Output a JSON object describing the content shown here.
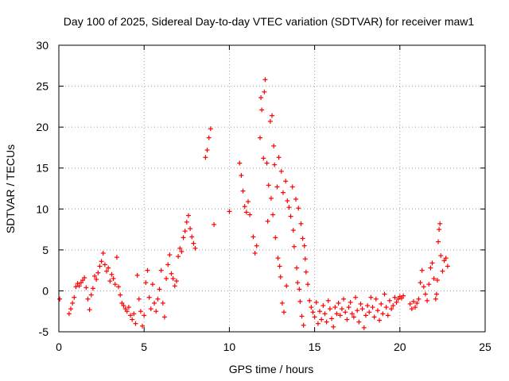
{
  "chart_data": {
    "type": "scatter",
    "title": "Day 100 of 2025, Sidereal Day-to-day VTEC variation (SDTVAR) for receiver maw1",
    "xlabel": "GPS time / hours",
    "ylabel": "SDTVAR / TECUs",
    "xlim": [
      0,
      25
    ],
    "ylim": [
      -5,
      30
    ],
    "xticks": [
      0,
      5,
      10,
      15,
      20,
      25
    ],
    "yticks": [
      -5,
      0,
      5,
      10,
      15,
      20,
      25,
      30
    ],
    "grid": true,
    "marker": "+",
    "color": "#ff0000",
    "series": [
      {
        "name": "SDTVAR",
        "points": [
          [
            0.05,
            -1.0
          ],
          [
            0.6,
            -2.8
          ],
          [
            0.7,
            -2.2
          ],
          [
            0.8,
            -1.5
          ],
          [
            0.9,
            -0.8
          ],
          [
            1.0,
            0.5
          ],
          [
            1.1,
            0.9
          ],
          [
            1.2,
            0.6
          ],
          [
            1.3,
            1.0
          ],
          [
            1.4,
            1.3
          ],
          [
            1.5,
            1.6
          ],
          [
            1.6,
            0.4
          ],
          [
            1.7,
            -1.0
          ],
          [
            1.8,
            -2.3
          ],
          [
            1.9,
            -0.5
          ],
          [
            2.0,
            0.3
          ],
          [
            2.1,
            1.8
          ],
          [
            2.2,
            1.4
          ],
          [
            2.3,
            2.2
          ],
          [
            2.4,
            3.0
          ],
          [
            2.5,
            3.6
          ],
          [
            2.6,
            4.6
          ],
          [
            2.7,
            3.2
          ],
          [
            2.8,
            2.4
          ],
          [
            2.9,
            2.8
          ],
          [
            3.0,
            1.2
          ],
          [
            3.1,
            2.0
          ],
          [
            3.2,
            1.5
          ],
          [
            3.3,
            0.8
          ],
          [
            3.4,
            4.1
          ],
          [
            3.5,
            0.5
          ],
          [
            3.6,
            -0.5
          ],
          [
            3.7,
            -1.5
          ],
          [
            3.8,
            -1.8
          ],
          [
            3.9,
            -2.2
          ],
          [
            4.0,
            -2.5
          ],
          [
            4.1,
            -2.0
          ],
          [
            4.2,
            -3.0
          ],
          [
            4.3,
            -3.5
          ],
          [
            4.4,
            -2.8
          ],
          [
            4.5,
            -4.0
          ],
          [
            4.6,
            1.9
          ],
          [
            4.7,
            -1.0
          ],
          [
            4.8,
            -2.5
          ],
          [
            4.9,
            -4.3
          ],
          [
            5.0,
            -3.0
          ],
          [
            5.1,
            1.0
          ],
          [
            5.2,
            2.5
          ],
          [
            5.3,
            -0.8
          ],
          [
            5.4,
            -2.2
          ],
          [
            5.5,
            0.8
          ],
          [
            5.6,
            -1.5
          ],
          [
            5.7,
            -2.5
          ],
          [
            5.8,
            -1.0
          ],
          [
            5.9,
            0.2
          ],
          [
            6.0,
            2.5
          ],
          [
            6.1,
            -1.5
          ],
          [
            6.2,
            -3.2
          ],
          [
            6.3,
            1.5
          ],
          [
            6.4,
            3.2
          ],
          [
            6.5,
            4.4
          ],
          [
            6.6,
            2.1
          ],
          [
            6.7,
            1.5
          ],
          [
            6.8,
            0.6
          ],
          [
            6.9,
            1.2
          ],
          [
            7.0,
            4.2
          ],
          [
            7.1,
            5.2
          ],
          [
            7.2,
            4.8
          ],
          [
            7.3,
            6.5
          ],
          [
            7.4,
            7.3
          ],
          [
            7.5,
            8.4
          ],
          [
            7.6,
            9.2
          ],
          [
            7.7,
            7.6
          ],
          [
            7.8,
            6.6
          ],
          [
            7.9,
            5.8
          ],
          [
            8.0,
            5.2
          ],
          [
            8.6,
            16.3
          ],
          [
            8.7,
            17.2
          ],
          [
            8.8,
            18.7
          ],
          [
            8.9,
            19.8
          ],
          [
            9.1,
            8.1
          ],
          [
            10.0,
            9.7
          ],
          [
            10.6,
            15.6
          ],
          [
            10.7,
            14.1
          ],
          [
            10.8,
            12.2
          ],
          [
            10.9,
            10.3
          ],
          [
            11.0,
            9.6
          ],
          [
            11.1,
            10.9
          ],
          [
            11.2,
            9.3
          ],
          [
            11.4,
            6.6
          ],
          [
            11.5,
            4.6
          ],
          [
            11.6,
            5.5
          ],
          [
            11.8,
            18.7
          ],
          [
            11.85,
            23.6
          ],
          [
            11.9,
            22.1
          ],
          [
            12.0,
            16.2
          ],
          [
            12.05,
            24.3
          ],
          [
            12.1,
            25.8
          ],
          [
            12.2,
            15.6
          ],
          [
            12.25,
            8.5
          ],
          [
            12.3,
            12.9
          ],
          [
            12.4,
            20.7
          ],
          [
            12.45,
            11.3
          ],
          [
            12.5,
            21.4
          ],
          [
            12.55,
            9.3
          ],
          [
            12.6,
            17.7
          ],
          [
            12.65,
            15.4
          ],
          [
            12.7,
            6.5
          ],
          [
            12.8,
            12.7
          ],
          [
            12.85,
            4.0
          ],
          [
            12.9,
            16.3
          ],
          [
            12.95,
            3.0
          ],
          [
            13.0,
            1.7
          ],
          [
            13.05,
            14.6
          ],
          [
            13.1,
            -1.5
          ],
          [
            13.15,
            12.0
          ],
          [
            13.2,
            -2.6
          ],
          [
            13.3,
            13.4
          ],
          [
            13.35,
            0.6
          ],
          [
            13.4,
            11.0
          ],
          [
            13.5,
            10.2
          ],
          [
            13.6,
            9.1
          ],
          [
            13.7,
            12.7
          ],
          [
            13.75,
            7.4
          ],
          [
            13.8,
            5.4
          ],
          [
            13.9,
            11.2
          ],
          [
            13.95,
            2.8
          ],
          [
            14.0,
            1.0
          ],
          [
            14.05,
            10.1
          ],
          [
            14.1,
            0.2
          ],
          [
            14.15,
            -1.3
          ],
          [
            14.2,
            8.2
          ],
          [
            14.25,
            -3.1
          ],
          [
            14.3,
            6.4
          ],
          [
            14.35,
            -4.2
          ],
          [
            14.4,
            5.5
          ],
          [
            14.45,
            3.9
          ],
          [
            14.5,
            2.3
          ],
          [
            14.6,
            0.8
          ],
          [
            14.7,
            -1.2
          ],
          [
            14.8,
            -2.0
          ],
          [
            14.9,
            -2.6
          ],
          [
            15.0,
            -3.2
          ],
          [
            15.1,
            -1.4
          ],
          [
            15.2,
            -4.0
          ],
          [
            15.3,
            -2.5
          ],
          [
            15.4,
            -3.5
          ],
          [
            15.5,
            -1.8
          ],
          [
            15.6,
            -2.8
          ],
          [
            15.7,
            -3.8
          ],
          [
            15.8,
            -1.2
          ],
          [
            15.9,
            -2.2
          ],
          [
            16.0,
            -3.4
          ],
          [
            16.1,
            -4.4
          ],
          [
            16.2,
            -2.0
          ],
          [
            16.3,
            -2.8
          ],
          [
            16.4,
            -1.5
          ],
          [
            16.5,
            -3.0
          ],
          [
            16.6,
            -2.2
          ],
          [
            16.7,
            -1.0
          ],
          [
            16.8,
            -2.6
          ],
          [
            16.9,
            -3.5
          ],
          [
            17.0,
            -2.0
          ],
          [
            17.1,
            -1.4
          ],
          [
            17.2,
            -2.8
          ],
          [
            17.3,
            -3.2
          ],
          [
            17.4,
            -0.8
          ],
          [
            17.5,
            -2.4
          ],
          [
            17.6,
            -3.8
          ],
          [
            17.7,
            -1.6
          ],
          [
            17.8,
            -2.2
          ],
          [
            17.9,
            -4.5
          ],
          [
            18.0,
            -3.0
          ],
          [
            18.1,
            -1.8
          ],
          [
            18.2,
            -2.6
          ],
          [
            18.3,
            -0.8
          ],
          [
            18.4,
            -2.0
          ],
          [
            18.5,
            -3.2
          ],
          [
            18.6,
            -1.0
          ],
          [
            18.7,
            -2.4
          ],
          [
            18.8,
            -3.6
          ],
          [
            18.9,
            -1.6
          ],
          [
            19.0,
            -2.8
          ],
          [
            19.1,
            -0.4
          ],
          [
            19.2,
            -2.0
          ],
          [
            19.3,
            -3.0
          ],
          [
            19.4,
            -1.2
          ],
          [
            19.5,
            -2.2
          ],
          [
            19.6,
            -1.8
          ],
          [
            19.7,
            -0.8
          ],
          [
            19.8,
            -1.4
          ],
          [
            19.9,
            -1.0
          ],
          [
            20.0,
            -0.7
          ],
          [
            20.1,
            -0.9
          ],
          [
            20.2,
            -0.6
          ],
          [
            20.6,
            -1.6
          ],
          [
            20.7,
            -2.2
          ],
          [
            20.8,
            -1.3
          ],
          [
            20.9,
            -2.0
          ],
          [
            21.0,
            -1.5
          ],
          [
            21.1,
            -1.0
          ],
          [
            21.2,
            1.0
          ],
          [
            21.3,
            2.5
          ],
          [
            21.4,
            0.5
          ],
          [
            21.5,
            -0.4
          ],
          [
            21.6,
            -1.2
          ],
          [
            21.7,
            0.8
          ],
          [
            21.8,
            2.8
          ],
          [
            21.9,
            3.4
          ],
          [
            22.0,
            1.5
          ],
          [
            22.1,
            -1.0
          ],
          [
            22.15,
            -0.4
          ],
          [
            22.2,
            1.3
          ],
          [
            22.25,
            6.0
          ],
          [
            22.3,
            7.5
          ],
          [
            22.35,
            8.2
          ],
          [
            22.4,
            4.3
          ],
          [
            22.5,
            2.4
          ],
          [
            22.6,
            3.7
          ],
          [
            22.7,
            4.0
          ],
          [
            22.8,
            3.0
          ]
        ]
      }
    ]
  }
}
